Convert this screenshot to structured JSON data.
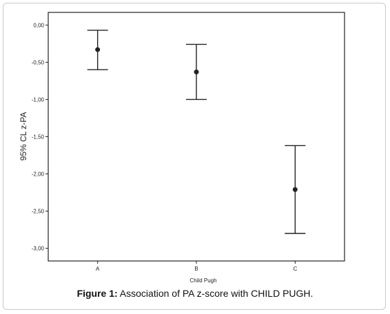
{
  "caption": {
    "label": "Figure 1:",
    "text": " Association of PA z-score with CHILD PUGH."
  },
  "chart_data": {
    "type": "errorbar",
    "title": "",
    "xlabel": "Child Pugh",
    "ylabel": "95% CL z-PA",
    "categories": [
      "A",
      "B",
      "C"
    ],
    "series": [
      {
        "mean": [
          -0.33,
          -0.63,
          -2.21
        ],
        "lower": [
          -0.6,
          -1.0,
          -2.8
        ],
        "upper": [
          -0.07,
          -0.26,
          -1.62
        ]
      }
    ],
    "ylim": [
      -3.17,
      0.17
    ],
    "yticks": [
      0.0,
      -0.5,
      -1.0,
      -1.5,
      -2.0,
      -2.5,
      -3.0
    ],
    "ytick_labels": [
      "0,00",
      "-0,50",
      "-1,00",
      "-1,50",
      "-2,00",
      "-2,50",
      "-3,00"
    ],
    "grid": false,
    "colors": {
      "line": "#222222"
    }
  }
}
